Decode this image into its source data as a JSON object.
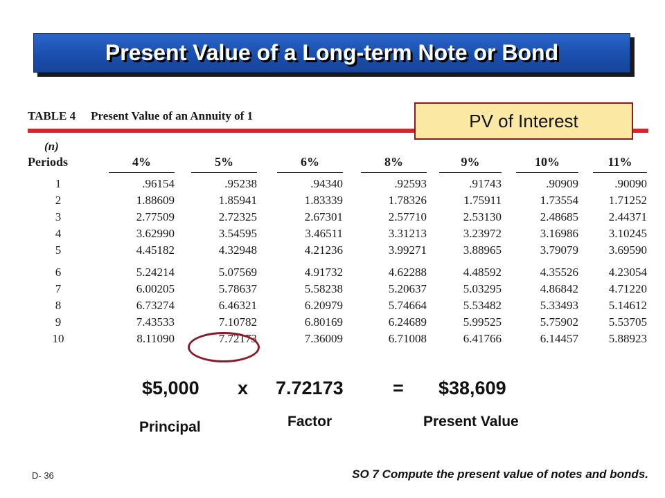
{
  "title": "Present Value of a Long-term Note or Bond",
  "table": {
    "caption_number": "TABLE 4",
    "caption_title": "Present Value of an Annuity of 1",
    "n_label": "(n)",
    "periods_header": "Periods",
    "rate_headers": [
      "4%",
      "5%",
      "6%",
      "8%",
      "9%",
      "10%",
      "11%"
    ],
    "rows": [
      {
        "period": "1",
        "values": [
          ".96154",
          ".95238",
          ".94340",
          ".92593",
          ".91743",
          ".90909",
          ".90090"
        ]
      },
      {
        "period": "2",
        "values": [
          "1.88609",
          "1.85941",
          "1.83339",
          "1.78326",
          "1.75911",
          "1.73554",
          "1.71252"
        ]
      },
      {
        "period": "3",
        "values": [
          "2.77509",
          "2.72325",
          "2.67301",
          "2.57710",
          "2.53130",
          "2.48685",
          "2.44371"
        ]
      },
      {
        "period": "4",
        "values": [
          "3.62990",
          "3.54595",
          "3.46511",
          "3.31213",
          "3.23972",
          "3.16986",
          "3.10245"
        ]
      },
      {
        "period": "5",
        "values": [
          "4.45182",
          "4.32948",
          "4.21236",
          "3.99271",
          "3.88965",
          "3.79079",
          "3.69590"
        ]
      },
      {
        "period": "6",
        "values": [
          "5.24214",
          "5.07569",
          "4.91732",
          "4.62288",
          "4.48592",
          "4.35526",
          "4.23054"
        ]
      },
      {
        "period": "7",
        "values": [
          "6.00205",
          "5.78637",
          "5.58238",
          "5.20637",
          "5.03295",
          "4.86842",
          "4.71220"
        ]
      },
      {
        "period": "8",
        "values": [
          "6.73274",
          "6.46321",
          "6.20979",
          "5.74664",
          "5.53482",
          "5.33493",
          "5.14612"
        ]
      },
      {
        "period": "9",
        "values": [
          "7.43533",
          "7.10782",
          "6.80169",
          "6.24689",
          "5.99525",
          "5.75902",
          "5.53705"
        ]
      },
      {
        "period": "10",
        "values": [
          "8.11090",
          "7.72173",
          "7.36009",
          "6.71008",
          "6.41766",
          "6.14457",
          "5.88923"
        ]
      }
    ],
    "highlighted_cell": {
      "period": "10",
      "rate": "5%",
      "value": "7.72173"
    }
  },
  "callout": "PV of Interest",
  "calculation": {
    "principal": "$5,000",
    "operator": "x",
    "factor": "7.72173",
    "equals": "=",
    "result": "$38,609"
  },
  "labels": {
    "principal": "Principal",
    "factor": "Factor",
    "present_value": "Present Value"
  },
  "footer": {
    "slide_number": "D- 36",
    "objective": "SO 7  Compute the present value of notes and bonds."
  },
  "colors": {
    "banner_blue": "#1a4fae",
    "rule_red": "#e0202e",
    "callout_fill": "#fbe9a3",
    "callout_border": "#8b1a1a",
    "circle": "#8b1a2a"
  }
}
